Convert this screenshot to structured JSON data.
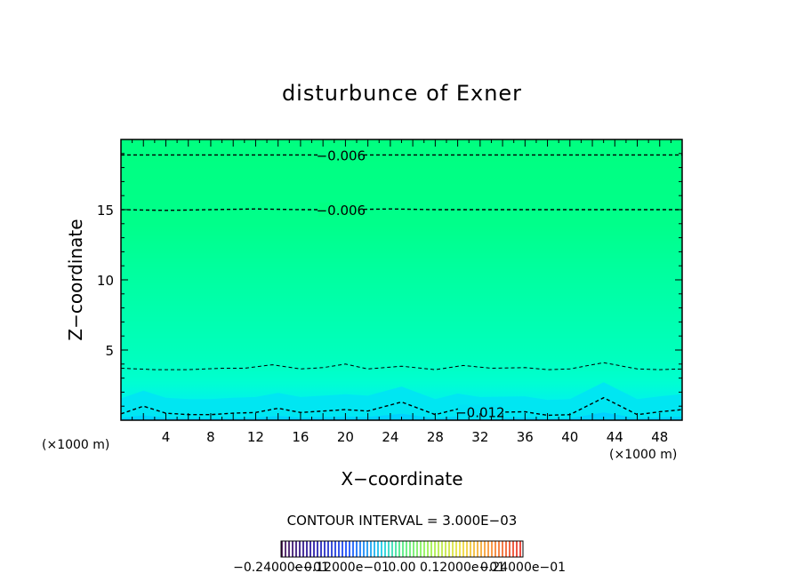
{
  "chart_data": {
    "type": "contour",
    "title": "disturbunce of Exner",
    "xlabel": "X−coordinate",
    "ylabel": "Z−coordinate",
    "x_unit_label": "(×1000 m)",
    "z_unit_label": "(×1000 m)",
    "xlim": [
      0,
      50
    ],
    "ylim": [
      0,
      20
    ],
    "x_ticks": [
      4,
      8,
      12,
      16,
      20,
      24,
      28,
      32,
      36,
      40,
      44,
      48
    ],
    "y_ticks": [
      5,
      10,
      15
    ],
    "contour_interval_text": "CONTOUR INTERVAL = 3.000E−03",
    "contour_labels": [
      {
        "text": "−0.006",
        "x": 19.6,
        "z": 18.9
      },
      {
        "text": "−0.006",
        "x": 19.6,
        "z": 15.0
      },
      {
        "text": "−0.012",
        "x": 32.0,
        "z": 0.6
      }
    ],
    "contour_lines": [
      {
        "level": -0.006,
        "points": [
          [
            0,
            18.9
          ],
          [
            50,
            18.9
          ]
        ]
      },
      {
        "level": -0.006,
        "points": [
          [
            0,
            15.0
          ],
          [
            4,
            14.95
          ],
          [
            8,
            15.0
          ],
          [
            12,
            15.05
          ],
          [
            16,
            15.0
          ],
          [
            20,
            15.0
          ],
          [
            24,
            15.05
          ],
          [
            28,
            15.0
          ],
          [
            32,
            15.0
          ],
          [
            36,
            15.0
          ],
          [
            40,
            15.0
          ],
          [
            44,
            15.0
          ],
          [
            48,
            15.0
          ],
          [
            50,
            15.0
          ]
        ]
      },
      {
        "level": -0.009,
        "points": [
          [
            0,
            3.7
          ],
          [
            3,
            3.6
          ],
          [
            6,
            3.6
          ],
          [
            9,
            3.7
          ],
          [
            11,
            3.7
          ],
          [
            13.5,
            3.95
          ],
          [
            16,
            3.65
          ],
          [
            18,
            3.75
          ],
          [
            20,
            4.0
          ],
          [
            22,
            3.65
          ],
          [
            25,
            3.85
          ],
          [
            28,
            3.6
          ],
          [
            30.5,
            3.9
          ],
          [
            33,
            3.7
          ],
          [
            36,
            3.75
          ],
          [
            38,
            3.6
          ],
          [
            40,
            3.65
          ],
          [
            43,
            4.1
          ],
          [
            46,
            3.65
          ],
          [
            48,
            3.6
          ],
          [
            50,
            3.65
          ]
        ]
      },
      {
        "level": -0.012,
        "points": [
          [
            0,
            0.45
          ],
          [
            2,
            1.0
          ],
          [
            4,
            0.5
          ],
          [
            6,
            0.4
          ],
          [
            8,
            0.4
          ],
          [
            10,
            0.5
          ],
          [
            12,
            0.55
          ],
          [
            14,
            0.85
          ],
          [
            16,
            0.55
          ],
          [
            18,
            0.65
          ],
          [
            20,
            0.75
          ],
          [
            22,
            0.65
          ],
          [
            25,
            1.3
          ],
          [
            28,
            0.4
          ],
          [
            30,
            0.8
          ],
          [
            32,
            0.55
          ],
          [
            36,
            0.6
          ],
          [
            38,
            0.35
          ],
          [
            40,
            0.4
          ],
          [
            43,
            1.6
          ],
          [
            46,
            0.4
          ],
          [
            48,
            0.6
          ],
          [
            50,
            0.75
          ]
        ]
      }
    ],
    "colorbar": {
      "min_label": "−0.24000e−01",
      "tick_labels": [
        "−0.24000e−01",
        "−0.12000e−01",
        "0.00",
        "0.12000e−01",
        "0.24000e−01"
      ],
      "colormap": "blue-green-red"
    },
    "colors": {
      "top_fill": "#00ff80",
      "mid_fill": "#00ffa6",
      "low_fill": "#00ffc0",
      "near_ground_fill": "#00f0ea",
      "ground_fill": "#00d5ff"
    }
  }
}
